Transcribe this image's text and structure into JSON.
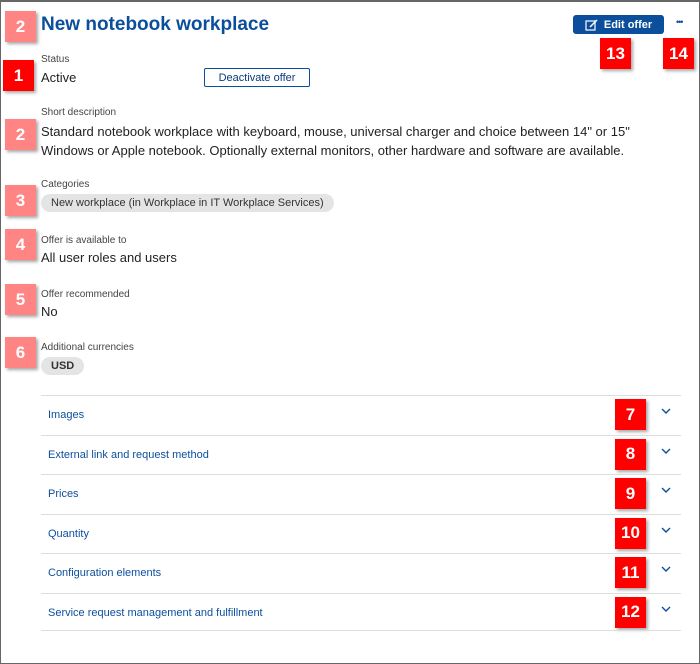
{
  "header": {
    "title": "New notebook workplace",
    "edit_label": "Edit offer",
    "more_label": "•••"
  },
  "status": {
    "label": "Status",
    "value": "Active",
    "deactivate_label": "Deactivate offer"
  },
  "description": {
    "label": "Short description",
    "lines": [
      "Standard notebook workplace with keyboard, mouse, universal charger and choice between 14\" or 15\"",
      "Windows or Apple notebook. Optionally external monitors, other hardware and software are available."
    ]
  },
  "categories": {
    "label": "Categories",
    "chip": "New workplace (in Workplace in IT Workplace Services)"
  },
  "available": {
    "label": "Offer is available to",
    "value": "All user roles and users"
  },
  "recommended": {
    "label": "Offer recommended",
    "value": "No"
  },
  "currencies": {
    "label": "Additional currencies",
    "chip": "USD"
  },
  "accordion": [
    {
      "label": "Images",
      "badge": "7"
    },
    {
      "label": "External link and request method",
      "badge": "8"
    },
    {
      "label": "Prices",
      "badge": "9"
    },
    {
      "label": "Quantity",
      "badge": "10"
    },
    {
      "label": "Configuration elements",
      "badge": "11"
    },
    {
      "label": "Service request management and fulfillment",
      "badge": "12"
    }
  ],
  "badges": {
    "title": "2",
    "status": "1",
    "description": "2",
    "categories": "3",
    "available": "4",
    "recommended": "5",
    "currencies": "6",
    "edit": "13",
    "more": "14"
  },
  "colors": {
    "accent": "#0b4f9c",
    "badge_red": "#ff0000",
    "badge_light": "#ff8585"
  }
}
